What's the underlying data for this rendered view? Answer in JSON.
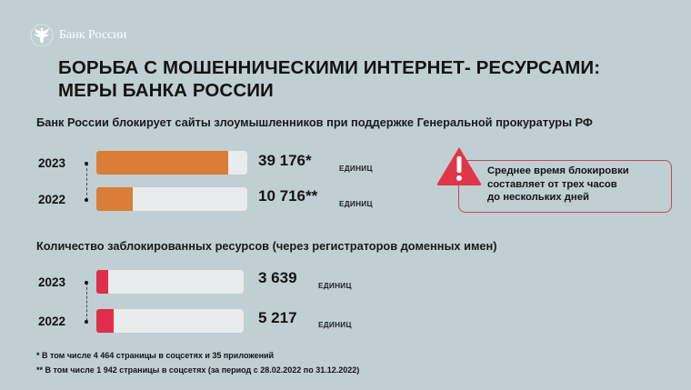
{
  "brand": {
    "name": "Банк России",
    "logo_icon": "eagle-emblem-icon"
  },
  "title": {
    "line1": "БОРЬБА С МОШЕННИЧЕСКИМИ ИНТЕРНЕТ- РЕСУРСАМИ:",
    "line2": "МЕРЫ БАНКА РОССИИ"
  },
  "colors": {
    "background": "#bfcfd2",
    "track": "#e8eced",
    "orange": "#da7d36",
    "red": "#e02e48",
    "alert": "#e03649"
  },
  "chart_data": [
    {
      "type": "bar",
      "orientation": "horizontal",
      "title": "Банк России блокирует сайты злоумышленников при поддержке Генеральной прокуратуры РФ",
      "categories": [
        "2023",
        "2022"
      ],
      "values": [
        39176,
        10716
      ],
      "value_labels": [
        "39 176*",
        "10 716**"
      ],
      "unit": "ЕДИНИЦ",
      "xlim": [
        0,
        45000
      ],
      "color": "#da7d36"
    },
    {
      "type": "bar",
      "orientation": "horizontal",
      "title": "Количество заблокированных ресурсов (через регистраторов доменных имен)",
      "categories": [
        "2023",
        "2022"
      ],
      "values": [
        3639,
        5217
      ],
      "value_labels": [
        "3 639",
        "5 217"
      ],
      "unit": "ЕДИНИЦ",
      "xlim": [
        0,
        45000
      ],
      "color": "#e02e48"
    }
  ],
  "note": {
    "icon": "warning-triangle-icon",
    "lines": [
      "Среднее время блокировки",
      "составляет от трех часов",
      "до нескольких дней"
    ]
  },
  "footnotes": [
    "*  В том числе 4 464 страницы в соцсетях и 35 приложений",
    "** В том числе 1 942 страницы в соцсетях (за период с 28.02.2022 по 31.12.2022)"
  ]
}
